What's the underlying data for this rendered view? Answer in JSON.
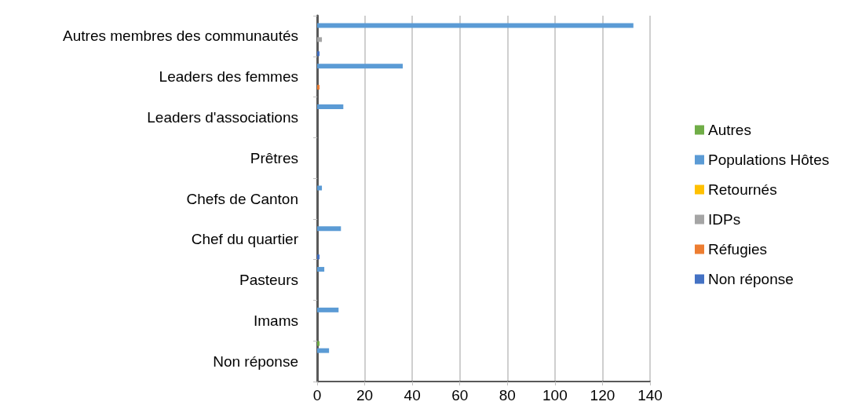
{
  "chart_data": {
    "type": "bar",
    "orientation": "horizontal",
    "categories": [
      "Autres membres des communautés",
      "Leaders des femmes",
      "Leaders d'associations",
      "Prêtres",
      "Chefs de Canton",
      "Chef du quartier",
      "Pasteurs",
      "Imams",
      "Non réponse"
    ],
    "series": [
      {
        "name": "Autres",
        "color": "#70ad47",
        "values": [
          0,
          0,
          0,
          0,
          0,
          0,
          0,
          0,
          1
        ]
      },
      {
        "name": "Populations Hôtes",
        "color": "#5b9bd5",
        "values": [
          133,
          36,
          11,
          0,
          2,
          10,
          3,
          9,
          5
        ]
      },
      {
        "name": "Retournés",
        "color": "#ffc000",
        "values": [
          0,
          0,
          0,
          0,
          0,
          0,
          0,
          0,
          0
        ]
      },
      {
        "name": "IDPs",
        "color": "#a5a5a5",
        "values": [
          2,
          0,
          0,
          0,
          0,
          0,
          0,
          0,
          0
        ]
      },
      {
        "name": "Réfugies",
        "color": "#ed7d31",
        "values": [
          0,
          1,
          0,
          0,
          0,
          0,
          0,
          0,
          0
        ]
      },
      {
        "name": "Non réponse",
        "color": "#4472c4",
        "values": [
          1,
          0,
          0,
          0,
          0,
          1,
          0,
          0,
          0
        ]
      }
    ],
    "xlim": [
      0,
      140
    ],
    "xticks": [
      0,
      20,
      40,
      60,
      80,
      100,
      120,
      140
    ],
    "grid": "x",
    "legend": "right"
  }
}
